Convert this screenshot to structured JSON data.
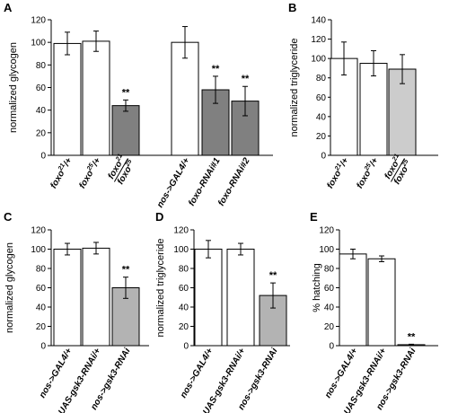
{
  "chart_data": [
    {
      "panel": "A",
      "type": "bar",
      "ylabel": "normalized glycogen",
      "ylim": [
        0,
        120
      ],
      "yticks": [
        0,
        20,
        40,
        60,
        80,
        100,
        120
      ],
      "categories": [
        "foxo21/+",
        "foxo25/+",
        "foxo21/foxo25",
        "nos->GAL4/+",
        "foxo-RNAi#1",
        "foxo-RNAi#2"
      ],
      "category_labels": [
        {
          "base": "foxo",
          "sup": "21",
          "rest": "/+"
        },
        {
          "base": "foxo",
          "sup": "25",
          "rest": "/+"
        },
        {
          "num_base": "foxo",
          "num_sup": "21",
          "den_base": "foxo",
          "den_sup": "25"
        },
        {
          "text": "nos->GAL4/+"
        },
        {
          "text": "foxo-RNAi#1"
        },
        {
          "text": "foxo-RNAi#2"
        }
      ],
      "values": [
        99,
        101,
        44,
        100,
        58,
        48
      ],
      "errors": [
        10,
        9,
        5,
        14,
        12,
        13
      ],
      "colors": [
        "#ffffff",
        "#ffffff",
        "#808080",
        "#ffffff",
        "#808080",
        "#808080"
      ],
      "significance": [
        "",
        "",
        "**",
        "",
        "**",
        "**"
      ]
    },
    {
      "panel": "B",
      "type": "bar",
      "ylabel": "normalized triglyceride",
      "ylim": [
        0,
        140
      ],
      "yticks": [
        0,
        20,
        40,
        60,
        80,
        100,
        120,
        140
      ],
      "categories": [
        "foxo21/+",
        "foxo25/+",
        "foxo21/foxo25"
      ],
      "category_labels": [
        {
          "base": "foxo",
          "sup": "21",
          "rest": "/+"
        },
        {
          "base": "foxo",
          "sup": "25",
          "rest": "/+"
        },
        {
          "num_base": "foxo",
          "num_sup": "21",
          "den_base": "foxo",
          "den_sup": "25"
        }
      ],
      "values": [
        100,
        95,
        89
      ],
      "errors": [
        17,
        13,
        15
      ],
      "colors": [
        "#ffffff",
        "#ffffff",
        "#cccccc"
      ],
      "significance": [
        "",
        "",
        ""
      ]
    },
    {
      "panel": "C",
      "type": "bar",
      "ylabel": "normalized glycogen",
      "ylim": [
        0,
        120
      ],
      "yticks": [
        0,
        20,
        40,
        60,
        80,
        100,
        120
      ],
      "categories": [
        "nos->GAL4/+",
        "UAS-gsk3-RNAi/+",
        "nos->gsk3-RNAi"
      ],
      "values": [
        100,
        101,
        60
      ],
      "errors": [
        6,
        6,
        11
      ],
      "colors": [
        "#ffffff",
        "#ffffff",
        "#b3b3b3"
      ],
      "significance": [
        "",
        "",
        "**"
      ]
    },
    {
      "panel": "D",
      "type": "bar",
      "ylabel": "normalized triglyceride",
      "ylim": [
        0,
        120
      ],
      "yticks": [
        0,
        20,
        40,
        60,
        80,
        100,
        120
      ],
      "categories": [
        "nos->GAL4/+",
        "UAS-gsk3-RNAi/+",
        "nos->gsk3-RNAi"
      ],
      "values": [
        100,
        100,
        52
      ],
      "errors": [
        9,
        6,
        13
      ],
      "colors": [
        "#ffffff",
        "#ffffff",
        "#b3b3b3"
      ],
      "significance": [
        "",
        "",
        "**"
      ]
    },
    {
      "panel": "E",
      "type": "bar",
      "ylabel": "% hatching",
      "ylim": [
        0,
        120
      ],
      "yticks": [
        0,
        20,
        40,
        60,
        80,
        100,
        120
      ],
      "categories": [
        "nos->GAL4/+",
        "UAS-gsk3-RNAi/+",
        "nos->gsk3-RNAi"
      ],
      "values": [
        95,
        90,
        1
      ],
      "errors": [
        5,
        3,
        0.5
      ],
      "colors": [
        "#ffffff",
        "#ffffff",
        "#b3b3b3"
      ],
      "significance": [
        "",
        "",
        "**"
      ]
    }
  ]
}
